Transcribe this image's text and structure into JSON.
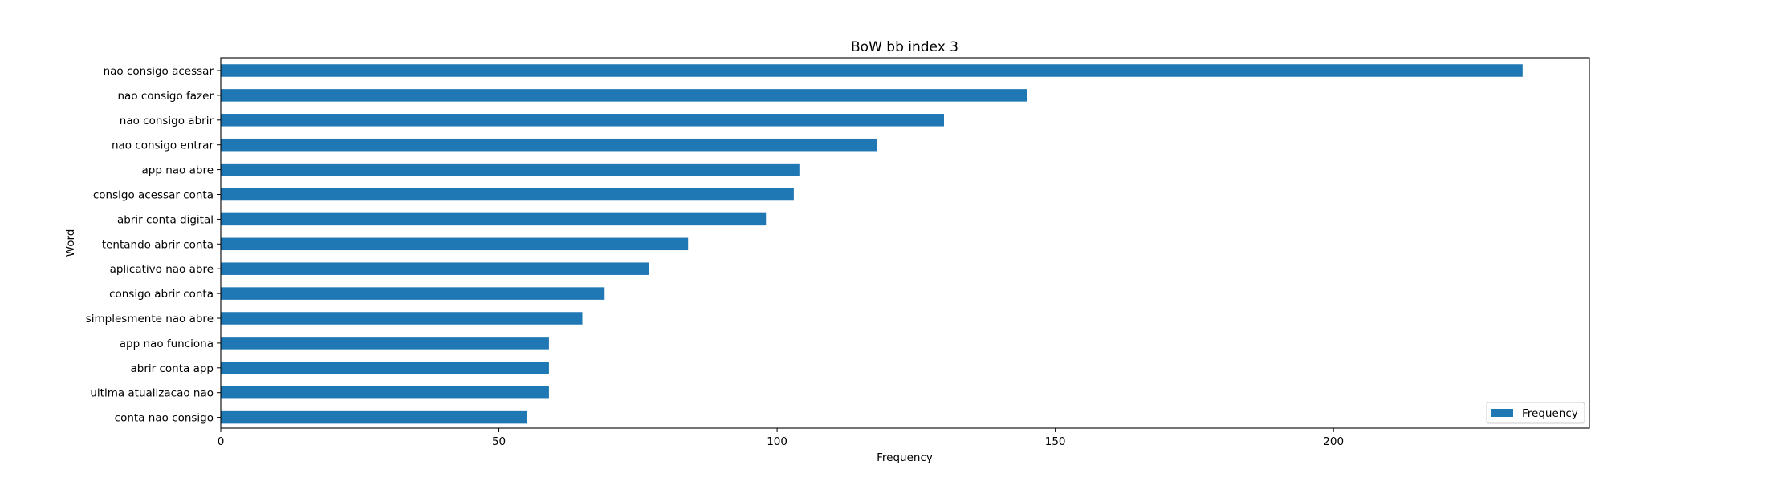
{
  "chart_data": {
    "type": "bar",
    "orientation": "horizontal",
    "title": "BoW bb index 3",
    "xlabel": "Frequency",
    "ylabel": "Word",
    "xlim": [
      0,
      246
    ],
    "xticks": [
      0,
      50,
      100,
      150,
      200
    ],
    "categories": [
      "nao consigo acessar",
      "nao consigo fazer",
      "nao consigo abrir",
      "nao consigo entrar",
      "app nao abre",
      "consigo acessar conta",
      "abrir conta digital",
      "tentando abrir conta",
      "aplicativo nao abre",
      "consigo abrir conta",
      "simplesmente nao abre",
      "app nao funciona",
      "abrir conta app",
      "ultima atualizacao nao",
      "conta nao consigo"
    ],
    "series": [
      {
        "name": "Frequency",
        "color": "#1f77b4",
        "values": [
          234,
          145,
          130,
          118,
          104,
          103,
          98,
          84,
          77,
          69,
          65,
          59,
          59,
          59,
          55
        ]
      }
    ],
    "legend": {
      "position": "bottom-right",
      "entries": [
        "Frequency"
      ]
    },
    "grid": false
  }
}
